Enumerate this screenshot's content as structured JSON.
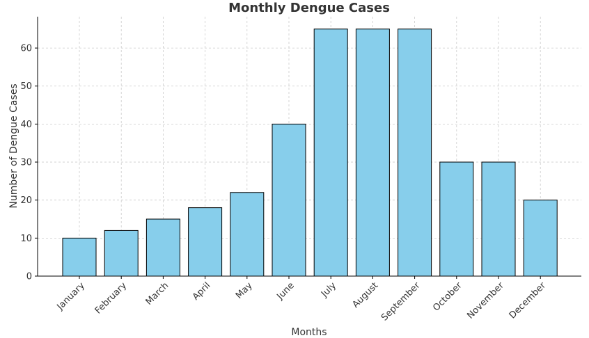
{
  "chart_data": {
    "type": "bar",
    "title": "Monthly Dengue Cases",
    "xlabel": "Months",
    "ylabel": "Number of Dengue Cases",
    "categories": [
      "January",
      "February",
      "March",
      "April",
      "May",
      "June",
      "July",
      "August",
      "September",
      "October",
      "November",
      "December"
    ],
    "values": [
      10,
      12,
      15,
      18,
      22,
      40,
      65,
      65,
      65,
      30,
      30,
      20
    ],
    "ylim": [
      0,
      68.25
    ],
    "yticks": [
      0,
      10,
      20,
      30,
      40,
      50,
      60
    ],
    "grid": true,
    "bar_color": "#87CEEB",
    "edge_color": "#000000"
  }
}
